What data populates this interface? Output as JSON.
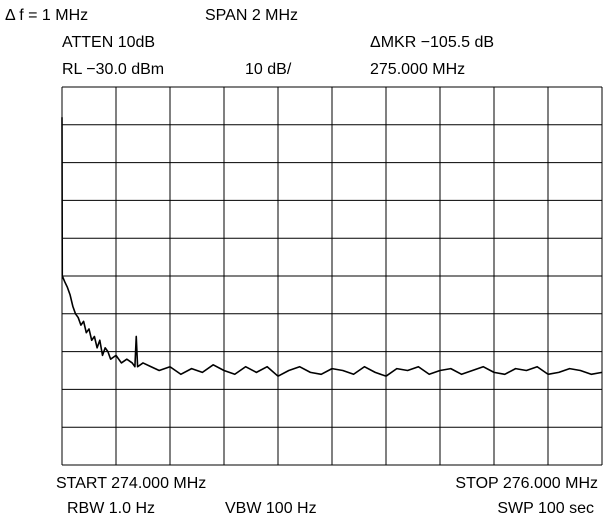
{
  "chart_data": {
    "type": "line",
    "annotations": [
      "Δ f = 1 MHz",
      "SPAN 2 MHz",
      "ATTEN 10dB",
      "ΔMKR −105.5 dB",
      "RL −30.0 dBm",
      "10 dB/",
      "275.000 MHz",
      "START 274.000 MHz",
      "STOP 276.000 MHz",
      "RBW 1.0 Hz",
      "VBW 100 Hz",
      "SWP 100 sec"
    ],
    "xlim": [
      274,
      276
    ],
    "ylim": [
      -130,
      -30
    ],
    "xticks": [
      274,
      274.2,
      274.4,
      274.6,
      274.8,
      275,
      275.2,
      275.4,
      275.6,
      275.8,
      276
    ],
    "yticks": [
      -130,
      -120,
      -110,
      -100,
      -90,
      -80,
      -70,
      -60,
      -50,
      -40,
      -30
    ],
    "grid": true,
    "x": [
      274.0,
      274.001,
      274.01,
      274.02,
      274.03,
      274.04,
      274.05,
      274.06,
      274.07,
      274.08,
      274.09,
      274.1,
      274.11,
      274.12,
      274.13,
      274.14,
      274.15,
      274.16,
      274.17,
      274.18,
      274.2,
      274.22,
      274.24,
      274.26,
      274.27,
      274.275,
      274.28,
      274.3,
      274.33,
      274.36,
      274.4,
      274.44,
      274.48,
      274.52,
      274.56,
      274.6,
      274.64,
      274.68,
      274.72,
      274.76,
      274.8,
      274.84,
      274.88,
      274.92,
      274.96,
      275.0,
      275.04,
      275.08,
      275.12,
      275.16,
      275.2,
      275.24,
      275.28,
      275.32,
      275.36,
      275.4,
      275.44,
      275.48,
      275.52,
      275.56,
      275.6,
      275.64,
      275.68,
      275.72,
      275.76,
      275.8,
      275.84,
      275.88,
      275.92,
      275.96,
      276.0
    ],
    "series": [
      {
        "color": "#000000",
        "values": [
          -38,
          -80,
          -81.5,
          -83,
          -85,
          -88,
          -90,
          -91,
          -93,
          -92,
          -95,
          -94,
          -97,
          -96,
          -99,
          -97,
          -101,
          -99,
          -100,
          -102,
          -101,
          -103,
          -102,
          -103,
          -104,
          -96,
          -104,
          -103,
          -104,
          -105,
          -104,
          -106,
          -104.5,
          -105.5,
          -103.5,
          -105,
          -106,
          -104,
          -105.5,
          -104,
          -106.5,
          -105,
          -104,
          -105.5,
          -106,
          -104.5,
          -105,
          -106,
          -104,
          -105.5,
          -106.5,
          -104.5,
          -105,
          -104,
          -106,
          -105,
          -104.5,
          -106,
          -105,
          -104,
          -105.5,
          -106,
          -104.5,
          -105,
          -104,
          -106,
          -105.5,
          -104.5,
          -105,
          -106,
          -105.5
        ]
      }
    ]
  }
}
